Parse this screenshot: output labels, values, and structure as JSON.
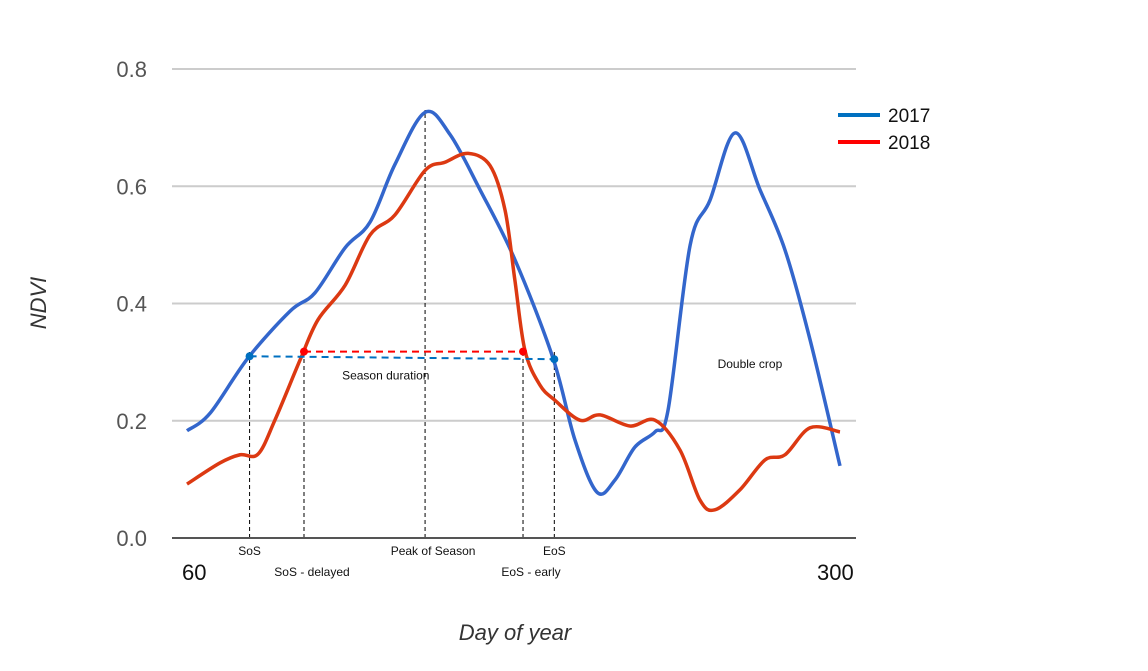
{
  "chart_data": {
    "type": "line",
    "title": "",
    "xlabel": "Day of year",
    "ylabel": "NDVI",
    "xlim": [
      60,
      300
    ],
    "ylim": [
      0,
      0.8
    ],
    "x_tick_labels": [
      "60",
      "300"
    ],
    "y_ticks": [
      0.0,
      0.2,
      0.4,
      0.6,
      0.8
    ],
    "y_tick_labels": [
      "0.0",
      "0.2",
      "0.4",
      "0.6",
      "0.8"
    ],
    "grid": true,
    "legend_position": "top-right",
    "series": [
      {
        "name": "2017",
        "color": "#3366cc",
        "legend_color": "#0070c0",
        "x": [
          60,
          68.5,
          82.4,
          97.9,
          107,
          118.1,
          127.3,
          136.4,
          147.5,
          156.7,
          167.7,
          180.5,
          194.5,
          202.6,
          210.7,
          217.3,
          224.6,
          232,
          236.8,
          244.9,
          252.2,
          261.4,
          270.6,
          279.8,
          289,
          300
        ],
        "y": [
          0.183,
          0.213,
          0.307,
          0.387,
          0.418,
          0.495,
          0.539,
          0.637,
          0.726,
          0.688,
          0.594,
          0.475,
          0.307,
          0.167,
          0.078,
          0.099,
          0.155,
          0.181,
          0.218,
          0.499,
          0.576,
          0.691,
          0.594,
          0.491,
          0.338,
          0.123
        ]
      },
      {
        "name": "2018",
        "color": "#dc3912",
        "legend_color": "#ff0000",
        "x": [
          60,
          72.1,
          79.5,
          86.1,
          92.3,
          101.5,
          108.1,
          118.1,
          127.3,
          136.4,
          147.5,
          154.8,
          163.3,
          171.4,
          176.9,
          180.5,
          184.2,
          189.7,
          195.2,
          204.4,
          211.8,
          222.8,
          232,
          241.2,
          248.5,
          254,
          263.2,
          272.4,
          279.8,
          289,
          300
        ],
        "y": [
          0.092,
          0.128,
          0.142,
          0.143,
          0.201,
          0.303,
          0.372,
          0.431,
          0.517,
          0.551,
          0.627,
          0.641,
          0.656,
          0.635,
          0.559,
          0.44,
          0.32,
          0.261,
          0.235,
          0.201,
          0.21,
          0.191,
          0.201,
          0.15,
          0.065,
          0.048,
          0.082,
          0.133,
          0.142,
          0.188,
          0.181
        ]
      }
    ],
    "annotations": {
      "vlines": [
        {
          "label": "SoS",
          "x": 83
        },
        {
          "label": "SoS - delayed",
          "x": 103
        },
        {
          "label": "Peak of Season",
          "x": 147.5
        },
        {
          "label": "EoS - early",
          "x": 183.5
        },
        {
          "label": "EoS",
          "x": 195
        }
      ],
      "season_lines": [
        {
          "series": "2017",
          "x": [
            83,
            195
          ],
          "y": [
            0.31,
            0.305
          ],
          "color": "#0070c0"
        },
        {
          "series": "2018",
          "x": [
            103,
            183.5
          ],
          "y": [
            0.318,
            0.318
          ],
          "color": "#ff0000"
        }
      ],
      "texts": [
        {
          "text": "Season duration",
          "x": 117,
          "y": 0.27
        },
        {
          "text": "Double crop",
          "x": 255,
          "y": 0.29
        }
      ]
    }
  }
}
